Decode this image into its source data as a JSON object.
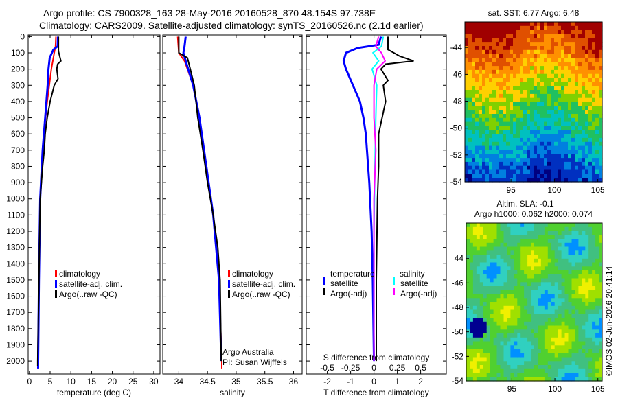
{
  "title_line1": "Argo profile: CS 7900328_163 28-May-2016 20160528_870 48.154S 97.738E",
  "title_line2": "Climatology: CARS2009. Satellite-adjusted climatology: synTS_20160526.nc (2.1d earlier)",
  "credit": "©IMOS 02-Jun-2016 20:41:14",
  "colors": {
    "clim": "#ff0000",
    "sat": "#0000ff",
    "argo": "#000000",
    "ssat": "#00ffff",
    "sargo": "#ff00ff"
  },
  "chart_data": [
    {
      "type": "line",
      "name": "temperature",
      "xlabel": "temperature (deg C)",
      "xlim": [
        -0.3,
        31.5
      ],
      "ylim": [
        2080,
        -10
      ],
      "xticks": [
        0,
        5,
        10,
        15,
        20,
        25,
        30
      ],
      "yticks": [
        0,
        100,
        200,
        300,
        400,
        500,
        600,
        700,
        800,
        900,
        1000,
        1100,
        1200,
        1300,
        1400,
        1500,
        1600,
        1700,
        1800,
        1900,
        2000
      ],
      "legend": [
        "climatology",
        "satellite-adj. clim.",
        "Argo(..raw -QC)"
      ],
      "series": [
        {
          "name": "climatology",
          "color": "clim",
          "depth": [
            0,
            60,
            100,
            200,
            300,
            400,
            500,
            700,
            1000,
            1500,
            2000,
            2050
          ],
          "values": [
            6.4,
            6.3,
            6.0,
            5.3,
            4.8,
            4.3,
            3.9,
            3.2,
            2.6,
            2.3,
            2.1,
            2.1
          ]
        },
        {
          "name": "satellite-adj. clim.",
          "color": "sat",
          "depth": [
            0,
            60,
            80,
            130,
            200,
            300,
            400,
            500,
            700,
            1000,
            1500,
            2000,
            2050
          ],
          "values": [
            6.9,
            6.8,
            5.8,
            4.9,
            4.6,
            4.4,
            4.1,
            3.8,
            3.2,
            2.6,
            2.3,
            2.1,
            2.1
          ]
        },
        {
          "name": "Argo",
          "color": "argo",
          "depth": [
            0,
            90,
            130,
            150,
            170,
            200,
            260,
            300,
            400,
            500,
            600,
            700,
            800,
            1000,
            1500,
            2000,
            2030
          ],
          "values": [
            7.0,
            7.0,
            7.4,
            7.6,
            6.8,
            6.6,
            6.9,
            6.0,
            5.0,
            4.3,
            3.8,
            3.6,
            3.2,
            2.6,
            2.3,
            2.0,
            2.0
          ]
        }
      ]
    },
    {
      "type": "line",
      "name": "salinity",
      "xlabel": "salinity",
      "xlim": [
        33.72,
        36.15
      ],
      "ylim": [
        2080,
        -10
      ],
      "xticks": [
        34,
        34.5,
        35,
        35.5,
        36
      ],
      "legend": [
        "climatology",
        "satellite-adj. clim.",
        "Argo(..raw -QC)"
      ],
      "annotation": [
        "Argo Australia",
        "PI: Susan Wijffels"
      ],
      "series": [
        {
          "name": "climatology",
          "color": "clim",
          "depth": [
            0,
            100,
            150,
            300,
            500,
            800,
            1100,
            1500,
            2000,
            2050
          ],
          "values": [
            33.98,
            34.0,
            34.1,
            34.25,
            34.36,
            34.47,
            34.6,
            34.7,
            34.75,
            34.75
          ]
        },
        {
          "name": "satellite-adj. clim.",
          "color": "sat",
          "depth": [
            0,
            60,
            100,
            150,
            300,
            500,
            800,
            1100,
            1500,
            2000
          ],
          "values": [
            34.12,
            34.1,
            34.08,
            34.12,
            34.25,
            34.36,
            34.48,
            34.6,
            34.7,
            34.74
          ]
        },
        {
          "name": "Argo",
          "color": "argo",
          "depth": [
            0,
            100,
            130,
            200,
            300,
            500,
            700,
            900,
            1100,
            1300,
            1500,
            2000
          ],
          "values": [
            34.0,
            34.0,
            34.15,
            34.2,
            34.27,
            34.33,
            34.42,
            34.5,
            34.6,
            34.68,
            34.72,
            34.74
          ]
        }
      ]
    },
    {
      "type": "line",
      "name": "difference",
      "xlabel": "T difference from climatology",
      "x2label": "S difference from climatology",
      "xlim": [
        -2.9,
        3.1
      ],
      "ylim": [
        2080,
        -10
      ],
      "xticks": [
        -2,
        -1,
        0,
        1,
        2
      ],
      "x2ticks": [
        -0.5,
        -0.25,
        0,
        0.25,
        0.5
      ],
      "x2lim": [
        -0.725,
        0.775
      ],
      "legend": {
        "temperature": [
          "temperature",
          "satellite",
          "Argo(-adj)"
        ],
        "salinity": [
          "salinity",
          "satellite",
          "Argo(-adj)"
        ]
      },
      "series": [
        {
          "name": "T satellite",
          "color": "sat",
          "axis": "T",
          "depth": [
            0,
            50,
            70,
            100,
            150,
            200,
            300,
            400,
            500,
            600,
            700,
            900,
            1200,
            1500,
            2000
          ],
          "values": [
            0.3,
            0.2,
            -0.7,
            -1.2,
            -1.3,
            -1.2,
            -0.9,
            -0.6,
            -0.45,
            -0.35,
            -0.3,
            -0.2,
            -0.1,
            -0.05,
            0
          ]
        },
        {
          "name": "T Argo",
          "color": "argo",
          "axis": "T",
          "depth": [
            0,
            80,
            120,
            150,
            170,
            200,
            270,
            300,
            400,
            500,
            600,
            800,
            1000,
            1500,
            2000
          ],
          "values": [
            0.6,
            0.6,
            1.1,
            1.7,
            0.5,
            0.3,
            0.6,
            0.4,
            0.5,
            0.35,
            0.2,
            0.2,
            0.15,
            0.1,
            0.1
          ]
        },
        {
          "name": "S satellite",
          "color": "ssat",
          "axis": "S",
          "depth": [
            0,
            60,
            100,
            150,
            200,
            300,
            500,
            800,
            1200,
            2000
          ],
          "values": [
            0.1,
            0.08,
            -0.01,
            0.05,
            -0.02,
            0.03,
            0.02,
            0.01,
            0.0,
            0.0
          ]
        },
        {
          "name": "S Argo",
          "color": "sargo",
          "axis": "S",
          "depth": [
            0,
            60,
            100,
            150,
            200,
            300,
            500,
            700,
            1000,
            1500,
            2000
          ],
          "values": [
            0.05,
            0.02,
            0.08,
            0.12,
            0.03,
            0.0,
            0.0,
            0.02,
            0.0,
            0.0,
            0.0
          ]
        }
      ]
    },
    {
      "type": "heatmap",
      "name": "sst",
      "title": "sat. SST: 6.77  Argo: 6.48",
      "xticks": [
        95,
        100,
        105
      ],
      "yticks": [
        -44,
        -46,
        -48,
        -50,
        -52,
        -54
      ],
      "xlim": [
        89.7,
        105.5
      ],
      "ylim": [
        -54,
        -42.1
      ]
    },
    {
      "type": "heatmap",
      "name": "sla",
      "title": [
        "Altim. SLA: -0.1",
        "Argo h1000: 0.062 h2000: 0.074"
      ],
      "xticks": [
        95,
        100,
        105
      ],
      "yticks": [
        -44,
        -46,
        -48,
        -50,
        -52,
        -54
      ],
      "xlim": [
        89.7,
        105.5
      ],
      "ylim": [
        -54,
        -41.1
      ]
    }
  ]
}
